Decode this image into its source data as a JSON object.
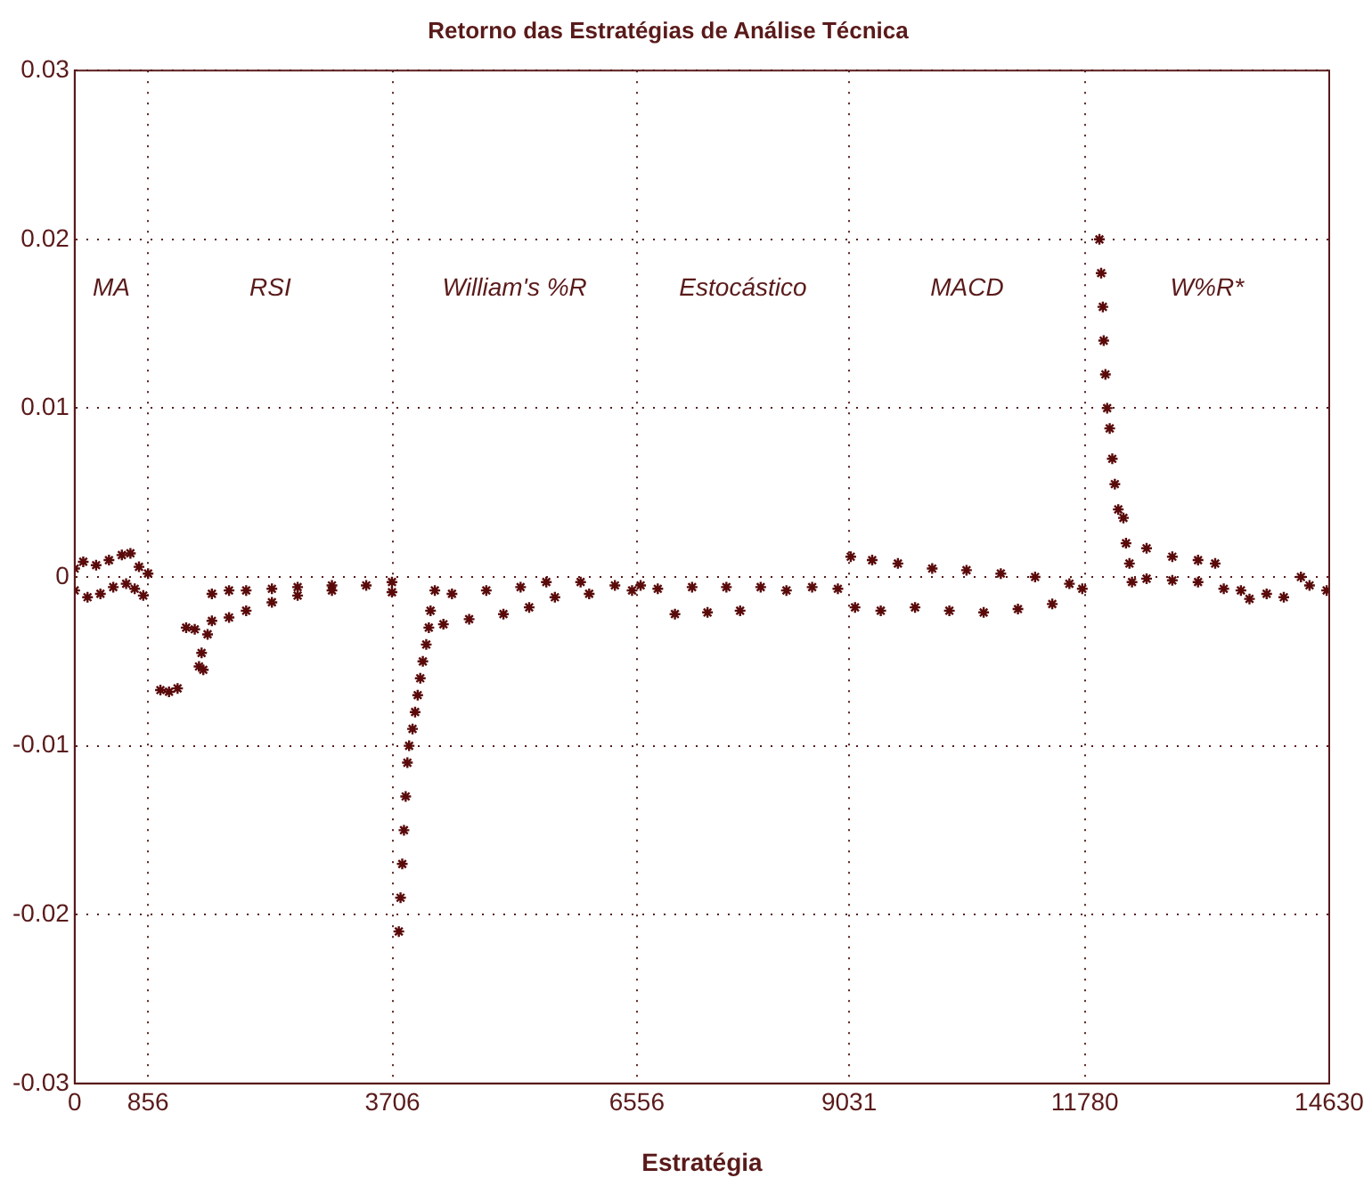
{
  "chart_data": {
    "type": "scatter",
    "title": "Retorno das Estratégias de Análise Técnica",
    "xlabel": "Estratégia",
    "x": [
      0,
      0,
      100,
      150,
      250,
      300,
      400,
      450,
      550,
      600,
      650,
      700,
      750,
      800,
      856,
      1000,
      1100,
      1200,
      1300,
      1400,
      1450,
      1500,
      1480,
      1550,
      1600,
      1600,
      1800,
      1800,
      2000,
      2000,
      2300,
      2300,
      2600,
      2600,
      3000,
      3000,
      3400,
      3700,
      3700,
      3780,
      3800,
      3820,
      3840,
      3860,
      3880,
      3900,
      3940,
      3970,
      4000,
      4030,
      4060,
      4100,
      4130,
      4150,
      4200,
      4300,
      4400,
      4600,
      4800,
      5000,
      5200,
      5300,
      5500,
      5600,
      5900,
      6000,
      6300,
      6500,
      6600,
      6800,
      7000,
      7200,
      7380,
      7600,
      7760,
      8000,
      8300,
      8600,
      8900,
      9050,
      9100,
      9300,
      9400,
      9600,
      9800,
      10000,
      10200,
      10400,
      10600,
      10800,
      11000,
      11200,
      11400,
      11600,
      11750,
      11950,
      11970,
      11990,
      12000,
      12020,
      12040,
      12070,
      12100,
      12130,
      12170,
      12230,
      12260,
      12300,
      12330,
      12500,
      12500,
      12800,
      12800,
      13100,
      13100,
      13300,
      13400,
      13600,
      13700,
      13900,
      14100,
      14300,
      14400,
      14600
    ],
    "values": [
      0.0005,
      -0.0008,
      0.0009,
      -0.0012,
      0.0007,
      -0.001,
      0.001,
      -0.0006,
      0.0013,
      -0.0004,
      0.0014,
      -0.0007,
      0.0006,
      -0.0011,
      0.0002,
      -0.0067,
      -0.0068,
      -0.0066,
      -0.003,
      -0.0031,
      -0.0053,
      -0.0055,
      -0.0045,
      -0.0034,
      -0.0026,
      -0.001,
      -0.0008,
      -0.0024,
      -0.0008,
      -0.002,
      -0.0007,
      -0.0015,
      -0.0006,
      -0.0011,
      -0.0005,
      -0.0008,
      -0.0005,
      -0.0003,
      -0.0009,
      -0.021,
      -0.019,
      -0.017,
      -0.015,
      -0.013,
      -0.011,
      -0.01,
      -0.009,
      -0.008,
      -0.007,
      -0.006,
      -0.005,
      -0.004,
      -0.003,
      -0.002,
      -0.0008,
      -0.0028,
      -0.001,
      -0.0025,
      -0.0008,
      -0.0022,
      -0.0006,
      -0.0018,
      -0.0003,
      -0.0012,
      -0.0003,
      -0.001,
      -0.0005,
      -0.0008,
      -0.0005,
      -0.0007,
      -0.0022,
      -0.0006,
      -0.0021,
      -0.0006,
      -0.002,
      -0.0006,
      -0.0008,
      -0.0006,
      -0.0007,
      0.0012,
      -0.0018,
      0.001,
      -0.002,
      0.0008,
      -0.0018,
      0.0005,
      -0.002,
      0.0004,
      -0.0021,
      0.0002,
      -0.0019,
      0,
      -0.0016,
      -0.0004,
      -0.0007,
      0.02,
      0.018,
      0.016,
      0.014,
      0.012,
      0.01,
      0.0088,
      0.007,
      0.0055,
      0.004,
      0.0035,
      0.002,
      0.0008,
      -0.0003,
      0.0017,
      -0.0001,
      0.0012,
      -0.0002,
      0.001,
      -0.0003,
      0.0008,
      -0.0007,
      -0.0008,
      -0.0013,
      -0.001,
      -0.0012,
      0,
      -0.0005,
      -0.0008
    ],
    "color": "#5a0a0a",
    "marker": "cross",
    "xlim": [
      0,
      14630
    ],
    "xticks": [
      0,
      856,
      3706,
      6556,
      9031,
      11780,
      14630
    ],
    "ylim": [
      -0.03,
      0.03
    ],
    "yticks": [
      -0.03,
      -0.02,
      -0.01,
      0,
      0.01,
      0.02,
      0.03
    ],
    "grid": true,
    "annotations": [
      "MA",
      "RSI",
      "William's %R",
      "Estocástico",
      "MACD",
      "W%R*"
    ]
  }
}
